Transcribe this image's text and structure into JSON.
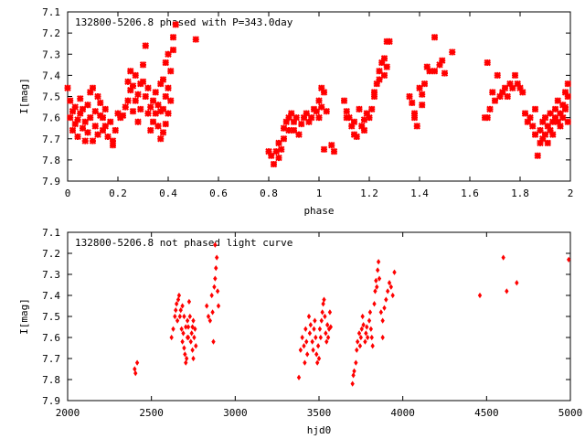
{
  "chart_data": [
    {
      "type": "scatter",
      "title": "132800-5206.8 phased with P=343.0day",
      "xlabel": "phase",
      "ylabel": "I[mag]",
      "xlim": [
        0,
        2
      ],
      "ylim": [
        7.1,
        7.9
      ],
      "y_inverted": true,
      "grid": false,
      "marker": "cross",
      "color": "#ff0000",
      "x_ticks": [
        "0",
        "0.2",
        "0.4",
        "0.6",
        "0.8",
        "1",
        "1.2",
        "1.4",
        "1.6",
        "1.8",
        "2"
      ],
      "y_ticks": [
        "7.1",
        "7.2",
        "7.3",
        "7.4",
        "7.5",
        "7.6",
        "7.7",
        "7.8",
        "7.9"
      ],
      "points": [
        [
          0.0,
          7.46
        ],
        [
          0.01,
          7.52
        ],
        [
          0.01,
          7.6
        ],
        [
          0.02,
          7.57
        ],
        [
          0.02,
          7.66
        ],
        [
          0.03,
          7.63
        ],
        [
          0.03,
          7.55
        ],
        [
          0.04,
          7.61
        ],
        [
          0.04,
          7.69
        ],
        [
          0.05,
          7.58
        ],
        [
          0.05,
          7.51
        ],
        [
          0.06,
          7.65
        ],
        [
          0.06,
          7.56
        ],
        [
          0.07,
          7.71
        ],
        [
          0.07,
          7.62
        ],
        [
          0.08,
          7.54
        ],
        [
          0.08,
          7.67
        ],
        [
          0.09,
          7.48
        ],
        [
          0.09,
          7.6
        ],
        [
          0.1,
          7.46
        ],
        [
          0.1,
          7.71
        ],
        [
          0.11,
          7.57
        ],
        [
          0.11,
          7.64
        ],
        [
          0.12,
          7.5
        ],
        [
          0.12,
          7.68
        ],
        [
          0.13,
          7.59
        ],
        [
          0.13,
          7.53
        ],
        [
          0.14,
          7.66
        ],
        [
          0.14,
          7.6
        ],
        [
          0.15,
          7.56
        ],
        [
          0.15,
          7.64
        ],
        [
          0.16,
          7.69
        ],
        [
          0.17,
          7.62
        ],
        [
          0.18,
          7.71
        ],
        [
          0.18,
          7.73
        ],
        [
          0.19,
          7.66
        ],
        [
          0.2,
          7.58
        ],
        [
          0.21,
          7.6
        ],
        [
          0.22,
          7.59
        ],
        [
          0.23,
          7.55
        ],
        [
          0.24,
          7.43
        ],
        [
          0.24,
          7.52
        ],
        [
          0.25,
          7.38
        ],
        [
          0.25,
          7.47
        ],
        [
          0.26,
          7.45
        ],
        [
          0.26,
          7.57
        ],
        [
          0.27,
          7.4
        ],
        [
          0.27,
          7.52
        ],
        [
          0.28,
          7.62
        ],
        [
          0.28,
          7.49
        ],
        [
          0.29,
          7.44
        ],
        [
          0.29,
          7.56
        ],
        [
          0.3,
          7.35
        ],
        [
          0.3,
          7.43
        ],
        [
          0.31,
          7.26
        ],
        [
          0.31,
          7.5
        ],
        [
          0.32,
          7.46
        ],
        [
          0.32,
          7.58
        ],
        [
          0.33,
          7.55
        ],
        [
          0.33,
          7.66
        ],
        [
          0.34,
          7.52
        ],
        [
          0.34,
          7.62
        ],
        [
          0.35,
          7.48
        ],
        [
          0.35,
          7.58
        ],
        [
          0.36,
          7.54
        ],
        [
          0.36,
          7.64
        ],
        [
          0.37,
          7.44
        ],
        [
          0.37,
          7.57
        ],
        [
          0.37,
          7.7
        ],
        [
          0.38,
          7.42
        ],
        [
          0.38,
          7.56
        ],
        [
          0.38,
          7.67
        ],
        [
          0.39,
          7.34
        ],
        [
          0.39,
          7.5
        ],
        [
          0.39,
          7.63
        ],
        [
          0.4,
          7.3
        ],
        [
          0.4,
          7.46
        ],
        [
          0.4,
          7.58
        ],
        [
          0.41,
          7.38
        ],
        [
          0.41,
          7.52
        ],
        [
          0.42,
          7.22
        ],
        [
          0.42,
          7.28
        ],
        [
          0.43,
          7.16
        ],
        [
          0.51,
          7.23
        ],
        [
          0.8,
          7.76
        ],
        [
          0.81,
          7.78
        ],
        [
          0.82,
          7.82
        ],
        [
          0.83,
          7.76
        ],
        [
          0.84,
          7.79
        ],
        [
          0.84,
          7.72
        ],
        [
          0.85,
          7.75
        ],
        [
          0.86,
          7.65
        ],
        [
          0.86,
          7.7
        ],
        [
          0.87,
          7.62
        ],
        [
          0.88,
          7.6
        ],
        [
          0.88,
          7.66
        ],
        [
          0.89,
          7.58
        ],
        [
          0.9,
          7.62
        ],
        [
          0.9,
          7.66
        ],
        [
          0.91,
          7.6
        ],
        [
          0.92,
          7.68
        ],
        [
          0.93,
          7.63
        ],
        [
          0.94,
          7.6
        ],
        [
          0.95,
          7.58
        ],
        [
          0.96,
          7.62
        ],
        [
          0.97,
          7.6
        ],
        [
          0.98,
          7.56
        ],
        [
          0.99,
          7.57
        ],
        [
          1.0,
          7.52
        ],
        [
          1.0,
          7.6
        ],
        [
          1.01,
          7.46
        ],
        [
          1.01,
          7.55
        ],
        [
          1.02,
          7.48
        ],
        [
          1.02,
          7.75
        ],
        [
          1.03,
          7.57
        ],
        [
          1.05,
          7.73
        ],
        [
          1.06,
          7.76
        ],
        [
          1.1,
          7.52
        ],
        [
          1.11,
          7.6
        ],
        [
          1.11,
          7.57
        ],
        [
          1.12,
          7.6
        ],
        [
          1.13,
          7.64
        ],
        [
          1.14,
          7.68
        ],
        [
          1.14,
          7.62
        ],
        [
          1.15,
          7.69
        ],
        [
          1.16,
          7.56
        ],
        [
          1.17,
          7.64
        ],
        [
          1.18,
          7.61
        ],
        [
          1.18,
          7.66
        ],
        [
          1.19,
          7.58
        ],
        [
          1.2,
          7.6
        ],
        [
          1.21,
          7.56
        ],
        [
          1.22,
          7.5
        ],
        [
          1.22,
          7.48
        ],
        [
          1.23,
          7.44
        ],
        [
          1.24,
          7.38
        ],
        [
          1.24,
          7.42
        ],
        [
          1.25,
          7.34
        ],
        [
          1.26,
          7.32
        ],
        [
          1.26,
          7.4
        ],
        [
          1.27,
          7.24
        ],
        [
          1.28,
          7.24
        ],
        [
          1.27,
          7.36
        ],
        [
          1.36,
          7.5
        ],
        [
          1.37,
          7.53
        ],
        [
          1.38,
          7.6
        ],
        [
          1.38,
          7.58
        ],
        [
          1.39,
          7.64
        ],
        [
          1.4,
          7.46
        ],
        [
          1.41,
          7.54
        ],
        [
          1.41,
          7.49
        ],
        [
          1.42,
          7.44
        ],
        [
          1.43,
          7.36
        ],
        [
          1.44,
          7.38
        ],
        [
          1.46,
          7.22
        ],
        [
          1.46,
          7.38
        ],
        [
          1.48,
          7.35
        ],
        [
          1.49,
          7.33
        ],
        [
          1.5,
          7.39
        ],
        [
          1.53,
          7.29
        ],
        [
          1.67,
          7.34
        ],
        [
          1.66,
          7.6
        ],
        [
          1.67,
          7.6
        ],
        [
          1.68,
          7.56
        ],
        [
          1.69,
          7.48
        ],
        [
          1.7,
          7.52
        ],
        [
          1.71,
          7.4
        ],
        [
          1.72,
          7.5
        ],
        [
          1.73,
          7.48
        ],
        [
          1.74,
          7.46
        ],
        [
          1.75,
          7.5
        ],
        [
          1.76,
          7.44
        ],
        [
          1.77,
          7.46
        ],
        [
          1.78,
          7.4
        ],
        [
          1.79,
          7.44
        ],
        [
          1.8,
          7.46
        ],
        [
          1.81,
          7.48
        ],
        [
          1.82,
          7.58
        ],
        [
          1.83,
          7.62
        ],
        [
          1.84,
          7.6
        ],
        [
          1.85,
          7.64
        ],
        [
          1.86,
          7.68
        ],
        [
          1.86,
          7.56
        ],
        [
          1.87,
          7.78
        ],
        [
          1.88,
          7.66
        ],
        [
          1.88,
          7.72
        ],
        [
          1.89,
          7.62
        ],
        [
          1.89,
          7.7
        ],
        [
          1.9,
          7.6
        ],
        [
          1.9,
          7.68
        ],
        [
          1.91,
          7.64
        ],
        [
          1.91,
          7.72
        ],
        [
          1.92,
          7.58
        ],
        [
          1.92,
          7.66
        ],
        [
          1.93,
          7.62
        ],
        [
          1.93,
          7.68
        ],
        [
          1.94,
          7.6
        ],
        [
          1.94,
          7.56
        ],
        [
          1.95,
          7.52
        ],
        [
          1.95,
          7.62
        ],
        [
          1.96,
          7.58
        ],
        [
          1.96,
          7.64
        ],
        [
          1.97,
          7.54
        ],
        [
          1.97,
          7.6
        ],
        [
          1.98,
          7.48
        ],
        [
          1.98,
          7.56
        ],
        [
          1.99,
          7.44
        ],
        [
          1.99,
          7.62
        ],
        [
          1.98,
          7.55
        ],
        [
          1.99,
          7.5
        ]
      ]
    },
    {
      "type": "scatter",
      "title": "132800-5206.8 not phased light curve",
      "xlabel": "hjd0",
      "ylabel": "I[mag]",
      "xlim": [
        2000,
        5000
      ],
      "ylim": [
        7.1,
        7.9
      ],
      "y_inverted": true,
      "grid": false,
      "marker": "diamond",
      "color": "#ff0000",
      "x_ticks": [
        "2000",
        "2500",
        "3000",
        "3500",
        "4000",
        "4500",
        "5000"
      ],
      "y_ticks": [
        "7.1",
        "7.2",
        "7.3",
        "7.4",
        "7.5",
        "7.6",
        "7.7",
        "7.8",
        "7.9"
      ],
      "points": [
        [
          2400,
          7.75
        ],
        [
          2405,
          7.77
        ],
        [
          2415,
          7.72
        ],
        [
          2620,
          7.6
        ],
        [
          2630,
          7.56
        ],
        [
          2640,
          7.5
        ],
        [
          2645,
          7.47
        ],
        [
          2650,
          7.44
        ],
        [
          2655,
          7.52
        ],
        [
          2660,
          7.42
        ],
        [
          2665,
          7.4
        ],
        [
          2670,
          7.5
        ],
        [
          2675,
          7.47
        ],
        [
          2680,
          7.56
        ],
        [
          2685,
          7.62
        ],
        [
          2690,
          7.58
        ],
        [
          2695,
          7.65
        ],
        [
          2700,
          7.68
        ],
        [
          2705,
          7.72
        ],
        [
          2710,
          7.7
        ],
        [
          2715,
          7.6
        ],
        [
          2720,
          7.55
        ],
        [
          2725,
          7.43
        ],
        [
          2730,
          7.5
        ],
        [
          2735,
          7.62
        ],
        [
          2740,
          7.58
        ],
        [
          2745,
          7.66
        ],
        [
          2750,
          7.7
        ],
        [
          2755,
          7.6
        ],
        [
          2760,
          7.56
        ],
        [
          2765,
          7.64
        ],
        [
          2685,
          7.45
        ],
        [
          2695,
          7.5
        ],
        [
          2705,
          7.55
        ],
        [
          2715,
          7.52
        ],
        [
          2720,
          7.6
        ],
        [
          2745,
          7.55
        ],
        [
          2750,
          7.52
        ],
        [
          2830,
          7.45
        ],
        [
          2840,
          7.5
        ],
        [
          2850,
          7.52
        ],
        [
          2860,
          7.4
        ],
        [
          2865,
          7.48
        ],
        [
          2870,
          7.62
        ],
        [
          2875,
          7.36
        ],
        [
          2880,
          7.32
        ],
        [
          2885,
          7.27
        ],
        [
          2890,
          7.22
        ],
        [
          2895,
          7.38
        ],
        [
          2900,
          7.45
        ],
        [
          2880,
          7.16
        ],
        [
          3380,
          7.79
        ],
        [
          3390,
          7.66
        ],
        [
          3400,
          7.6
        ],
        [
          3410,
          7.64
        ],
        [
          3415,
          7.72
        ],
        [
          3420,
          7.56
        ],
        [
          3425,
          7.62
        ],
        [
          3430,
          7.68
        ],
        [
          3440,
          7.5
        ],
        [
          3445,
          7.58
        ],
        [
          3450,
          7.54
        ],
        [
          3460,
          7.62
        ],
        [
          3465,
          7.66
        ],
        [
          3470,
          7.56
        ],
        [
          3475,
          7.52
        ],
        [
          3480,
          7.6
        ],
        [
          3485,
          7.68
        ],
        [
          3490,
          7.72
        ],
        [
          3495,
          7.64
        ],
        [
          3500,
          7.7
        ],
        [
          3505,
          7.56
        ],
        [
          3510,
          7.6
        ],
        [
          3515,
          7.52
        ],
        [
          3520,
          7.48
        ],
        [
          3525,
          7.44
        ],
        [
          3530,
          7.42
        ],
        [
          3535,
          7.5
        ],
        [
          3540,
          7.58
        ],
        [
          3545,
          7.62
        ],
        [
          3550,
          7.54
        ],
        [
          3555,
          7.6
        ],
        [
          3560,
          7.56
        ],
        [
          3565,
          7.48
        ],
        [
          3570,
          7.55
        ],
        [
          3700,
          7.82
        ],
        [
          3705,
          7.78
        ],
        [
          3710,
          7.76
        ],
        [
          3720,
          7.72
        ],
        [
          3725,
          7.66
        ],
        [
          3730,
          7.62
        ],
        [
          3740,
          7.58
        ],
        [
          3745,
          7.64
        ],
        [
          3750,
          7.6
        ],
        [
          3755,
          7.56
        ],
        [
          3760,
          7.5
        ],
        [
          3765,
          7.54
        ],
        [
          3775,
          7.62
        ],
        [
          3780,
          7.58
        ],
        [
          3785,
          7.55
        ],
        [
          3790,
          7.6
        ],
        [
          3800,
          7.52
        ],
        [
          3805,
          7.48
        ],
        [
          3810,
          7.56
        ],
        [
          3815,
          7.6
        ],
        [
          3820,
          7.64
        ],
        [
          3830,
          7.44
        ],
        [
          3835,
          7.38
        ],
        [
          3840,
          7.33
        ],
        [
          3845,
          7.36
        ],
        [
          3850,
          7.28
        ],
        [
          3855,
          7.24
        ],
        [
          3860,
          7.32
        ],
        [
          3870,
          7.48
        ],
        [
          3880,
          7.52
        ],
        [
          3890,
          7.46
        ],
        [
          3900,
          7.42
        ],
        [
          3910,
          7.38
        ],
        [
          3920,
          7.34
        ],
        [
          3930,
          7.36
        ],
        [
          3940,
          7.4
        ],
        [
          3950,
          7.29
        ],
        [
          3880,
          7.6
        ],
        [
          4460,
          7.4
        ],
        [
          4600,
          7.22
        ],
        [
          4620,
          7.38
        ],
        [
          4680,
          7.34
        ],
        [
          4990,
          7.23
        ]
      ]
    }
  ]
}
